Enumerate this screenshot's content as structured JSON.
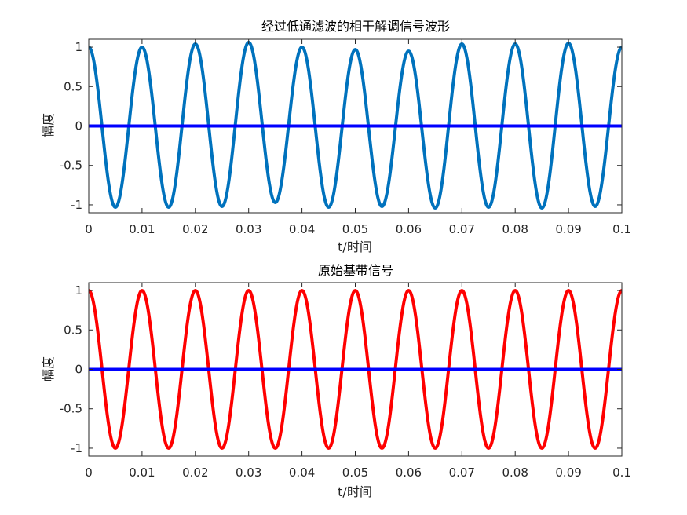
{
  "chart_data": [
    {
      "type": "line",
      "title": "经过低通滤波的相干解调信号波形",
      "xlabel": "t/时间",
      "ylabel": "幅度",
      "xlim": [
        0,
        0.1
      ],
      "ylim": [
        -1.1,
        1.1
      ],
      "xticks": [
        0,
        0.01,
        0.02,
        0.03,
        0.04,
        0.05,
        0.06,
        0.07,
        0.08,
        0.09,
        0.1
      ],
      "xtick_labels": [
        "0",
        "0.01",
        "0.02",
        "0.03",
        "0.04",
        "0.05",
        "0.06",
        "0.07",
        "0.08",
        "0.09",
        "0.1"
      ],
      "yticks": [
        1,
        0.5,
        0,
        -0.5,
        -1
      ],
      "ytick_labels": [
        "1",
        "0.5",
        "0",
        "-0.5",
        "-1"
      ],
      "grid": false,
      "series": [
        {
          "color": "#0072BD",
          "frequency_hz": 100,
          "peaks": [
            [
              0.0,
              1.0
            ],
            [
              0.005,
              -1.03
            ],
            [
              0.01,
              1.0
            ],
            [
              0.015,
              -1.03
            ],
            [
              0.02,
              1.04
            ],
            [
              0.025,
              -1.02
            ],
            [
              0.03,
              1.06
            ],
            [
              0.035,
              -0.97
            ],
            [
              0.04,
              1.0
            ],
            [
              0.045,
              -1.03
            ],
            [
              0.05,
              0.97
            ],
            [
              0.055,
              -1.02
            ],
            [
              0.06,
              0.95
            ],
            [
              0.065,
              -1.04
            ],
            [
              0.07,
              1.04
            ],
            [
              0.075,
              -1.03
            ],
            [
              0.08,
              1.04
            ],
            [
              0.085,
              -1.04
            ],
            [
              0.09,
              1.05
            ],
            [
              0.095,
              -1.02
            ],
            [
              0.1,
              1.0
            ]
          ]
        },
        {
          "color": "#0000FF",
          "constant": 0
        }
      ]
    },
    {
      "type": "line",
      "title": "原始基带信号",
      "xlabel": "t/时间",
      "ylabel": "幅度",
      "xlim": [
        0,
        0.1
      ],
      "ylim": [
        -1.1,
        1.1
      ],
      "xticks": [
        0,
        0.01,
        0.02,
        0.03,
        0.04,
        0.05,
        0.06,
        0.07,
        0.08,
        0.09,
        0.1
      ],
      "xtick_labels": [
        "0",
        "0.01",
        "0.02",
        "0.03",
        "0.04",
        "0.05",
        "0.06",
        "0.07",
        "0.08",
        "0.09",
        "0.1"
      ],
      "yticks": [
        1,
        0.5,
        0,
        -0.5,
        -1
      ],
      "ytick_labels": [
        "1",
        "0.5",
        "0",
        "-0.5",
        "-1"
      ],
      "grid": false,
      "series": [
        {
          "color": "#FF0000",
          "frequency_hz": 100,
          "amplitude": 1.0,
          "function": "cos"
        },
        {
          "color": "#0000FF",
          "constant": 0
        }
      ]
    }
  ]
}
